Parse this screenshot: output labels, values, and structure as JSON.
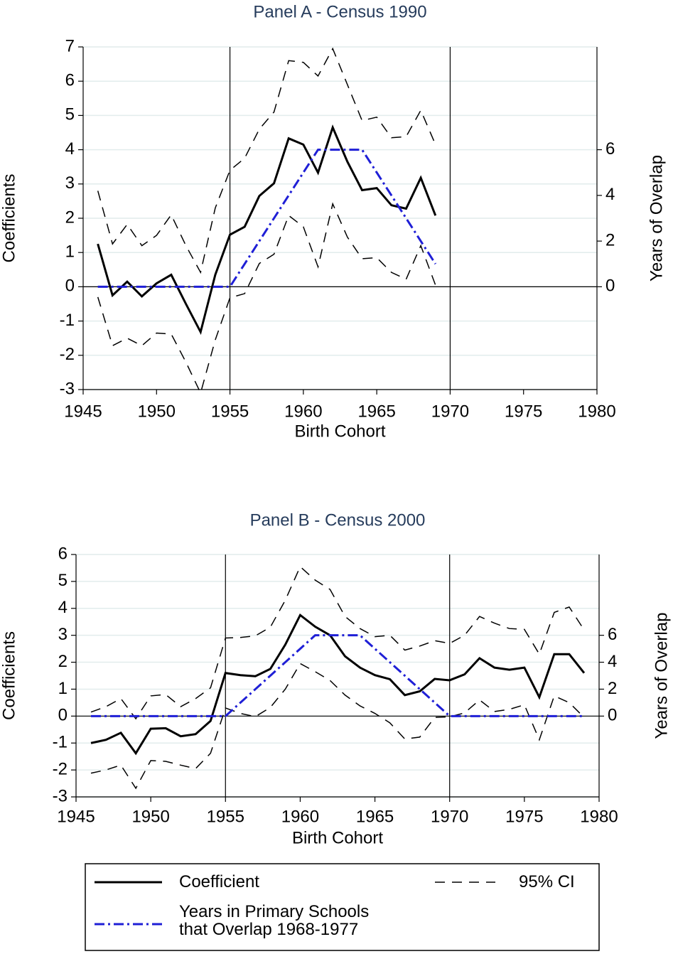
{
  "chart_data": [
    {
      "type": "line",
      "title": "Panel A - Census 1990",
      "xlabel": "Birth Cohort",
      "ylabel": "Coefficients",
      "y2label": "Years of Overlap",
      "x": [
        1946,
        1947,
        1948,
        1949,
        1950,
        1951,
        1952,
        1953,
        1954,
        1955,
        1956,
        1957,
        1958,
        1959,
        1960,
        1961,
        1962,
        1963,
        1964,
        1965,
        1966,
        1967,
        1968,
        1969
      ],
      "series": [
        {
          "name": "Coefficient",
          "color": "#000000",
          "style": "solid",
          "values": [
            1.25,
            -0.25,
            0.15,
            -0.28,
            0.1,
            0.35,
            -0.5,
            -1.32,
            0.35,
            1.52,
            1.75,
            2.65,
            3.02,
            4.33,
            4.15,
            3.33,
            4.65,
            3.65,
            2.82,
            2.88,
            2.38,
            2.28,
            3.18,
            2.08
          ]
        },
        {
          "name": "95% CI",
          "color": "#000000",
          "style": "dashed",
          "values": [
            2.8,
            1.25,
            1.82,
            1.2,
            1.5,
            2.1,
            1.2,
            0.42,
            2.3,
            3.4,
            3.75,
            4.6,
            5.1,
            6.6,
            6.55,
            6.15,
            6.95,
            5.9,
            4.85,
            4.95,
            4.35,
            4.38,
            5.15,
            4.15
          ]
        },
        {
          "color": "#000000",
          "style": "dashed",
          "values": [
            -0.3,
            -1.72,
            -1.5,
            -1.72,
            -1.35,
            -1.38,
            -2.2,
            -3.1,
            -1.55,
            -0.32,
            -0.2,
            0.68,
            0.95,
            2.08,
            1.75,
            0.58,
            2.42,
            1.45,
            0.82,
            0.85,
            0.42,
            0.22,
            1.2,
            0.05
          ]
        },
        {
          "name": "Years in Primary Schools\nthat Overlap 1968-1977",
          "color": "#1f1fd6",
          "style": "dashdot",
          "axis": "y2",
          "values": [
            0,
            0,
            0,
            0,
            0,
            0,
            0,
            0,
            0,
            0,
            1,
            2,
            3,
            4,
            5,
            6,
            6,
            6,
            6,
            5,
            4,
            3,
            2,
            1
          ]
        }
      ],
      "xlim": [
        1945,
        1980
      ],
      "xticks": [
        1945,
        1950,
        1955,
        1960,
        1965,
        1970,
        1975,
        1980
      ],
      "ylim": [
        -3,
        7
      ],
      "yticks": [
        -3,
        -2,
        -1,
        0,
        1,
        2,
        3,
        4,
        5,
        6,
        7
      ],
      "y2lim": [
        -4.5,
        10.5
      ],
      "y2ticks": [
        0,
        2,
        4,
        6
      ],
      "vlines": [
        1955,
        1970
      ],
      "hline": 0,
      "grid": true
    },
    {
      "type": "line",
      "title": "Panel B - Census 2000",
      "xlabel": "Birth Cohort",
      "ylabel": "Coefficients",
      "y2label": "Years of Overlap",
      "x": [
        1946,
        1947,
        1948,
        1949,
        1950,
        1951,
        1952,
        1953,
        1954,
        1955,
        1956,
        1957,
        1958,
        1959,
        1960,
        1961,
        1962,
        1963,
        1964,
        1965,
        1966,
        1967,
        1968,
        1969,
        1970,
        1971,
        1972,
        1973,
        1974,
        1975,
        1976,
        1977,
        1978,
        1979
      ],
      "series": [
        {
          "color": "#000000",
          "style": "solid",
          "values": [
            -1.0,
            -0.88,
            -0.62,
            -1.38,
            -0.47,
            -0.45,
            -0.75,
            -0.67,
            -0.18,
            1.6,
            1.52,
            1.48,
            1.75,
            2.65,
            3.75,
            3.32,
            3.0,
            2.22,
            1.8,
            1.52,
            1.37,
            0.78,
            0.92,
            1.38,
            1.33,
            1.55,
            2.15,
            1.8,
            1.72,
            1.8,
            0.7,
            2.3,
            2.3,
            1.6
          ]
        },
        {
          "color": "#000000",
          "style": "dashed",
          "values": [
            0.15,
            0.35,
            0.65,
            -0.1,
            0.75,
            0.8,
            0.35,
            0.65,
            1.05,
            2.9,
            2.92,
            2.98,
            3.3,
            4.3,
            5.55,
            5.05,
            4.7,
            3.7,
            3.25,
            2.95,
            3.0,
            2.45,
            2.6,
            2.8,
            2.7,
            3.0,
            3.7,
            3.45,
            3.25,
            3.22,
            2.3,
            3.85,
            4.05,
            3.2
          ]
        },
        {
          "color": "#000000",
          "style": "dashed",
          "values": [
            -2.12,
            -2.0,
            -1.82,
            -2.68,
            -1.65,
            -1.68,
            -1.82,
            -1.95,
            -1.38,
            0.3,
            0.1,
            -0.02,
            0.32,
            1.0,
            1.95,
            1.65,
            1.32,
            0.78,
            0.38,
            0.1,
            -0.25,
            -0.85,
            -0.78,
            -0.05,
            -0.03,
            0.12,
            0.6,
            0.17,
            0.25,
            0.42,
            -0.88,
            0.75,
            0.5,
            -0.05
          ]
        },
        {
          "color": "#1f1fd6",
          "style": "dashdot",
          "axis": "y2",
          "values": [
            0,
            0,
            0,
            0,
            0,
            0,
            0,
            0,
            0,
            0,
            1,
            2,
            3,
            4,
            5,
            6,
            6,
            6,
            6,
            5,
            4,
            3,
            2,
            1,
            0,
            0,
            0,
            0,
            0,
            0,
            0,
            0,
            0,
            0
          ]
        }
      ],
      "xlim": [
        1945,
        1980
      ],
      "xticks": [
        1945,
        1950,
        1955,
        1960,
        1965,
        1970,
        1975,
        1980
      ],
      "ylim": [
        -3,
        6
      ],
      "yticks": [
        -3,
        -2,
        -1,
        0,
        1,
        2,
        3,
        4,
        5,
        6
      ],
      "y2lim": [
        -6,
        12
      ],
      "y2ticks": [
        0,
        2,
        4,
        6
      ],
      "vlines": [
        1955,
        1970
      ],
      "hline": 0,
      "grid": true
    }
  ]
}
